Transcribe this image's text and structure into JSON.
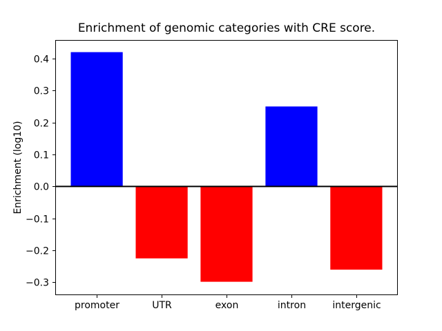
{
  "window": {
    "background": "#ffffff"
  },
  "chart_data": {
    "type": "bar",
    "title": "Enrichment of genomic categories with CRE score.",
    "ylabel": "Enrichment (log10)",
    "xlabel": "",
    "categories": [
      "promoter",
      "UTR",
      "exon",
      "intron",
      "intergenic"
    ],
    "values": [
      0.42,
      -0.225,
      -0.298,
      0.25,
      -0.26
    ],
    "bar_colors": [
      "#0000ff",
      "#ff0000",
      "#ff0000",
      "#0000ff",
      "#ff0000"
    ],
    "positive_color": "#0000ff",
    "negative_color": "#ff0000",
    "axis_color": "#000000",
    "text_color": "#000000",
    "yticks": [
      -0.3,
      -0.2,
      -0.1,
      0,
      0.1,
      0.2,
      0.3,
      0.4
    ],
    "ytick_labels": [
      "−0.3",
      "−0.2",
      "−0.1",
      "0.0",
      "0.1",
      "0.2",
      "0.3",
      "0.4"
    ],
    "ylim": [
      -0.34,
      0.458
    ],
    "xlim": [
      -0.64,
      4.64
    ],
    "bar_width": 0.8,
    "zero_line_value": 0,
    "zero_line_width": 2,
    "grid": false,
    "legend": null
  }
}
